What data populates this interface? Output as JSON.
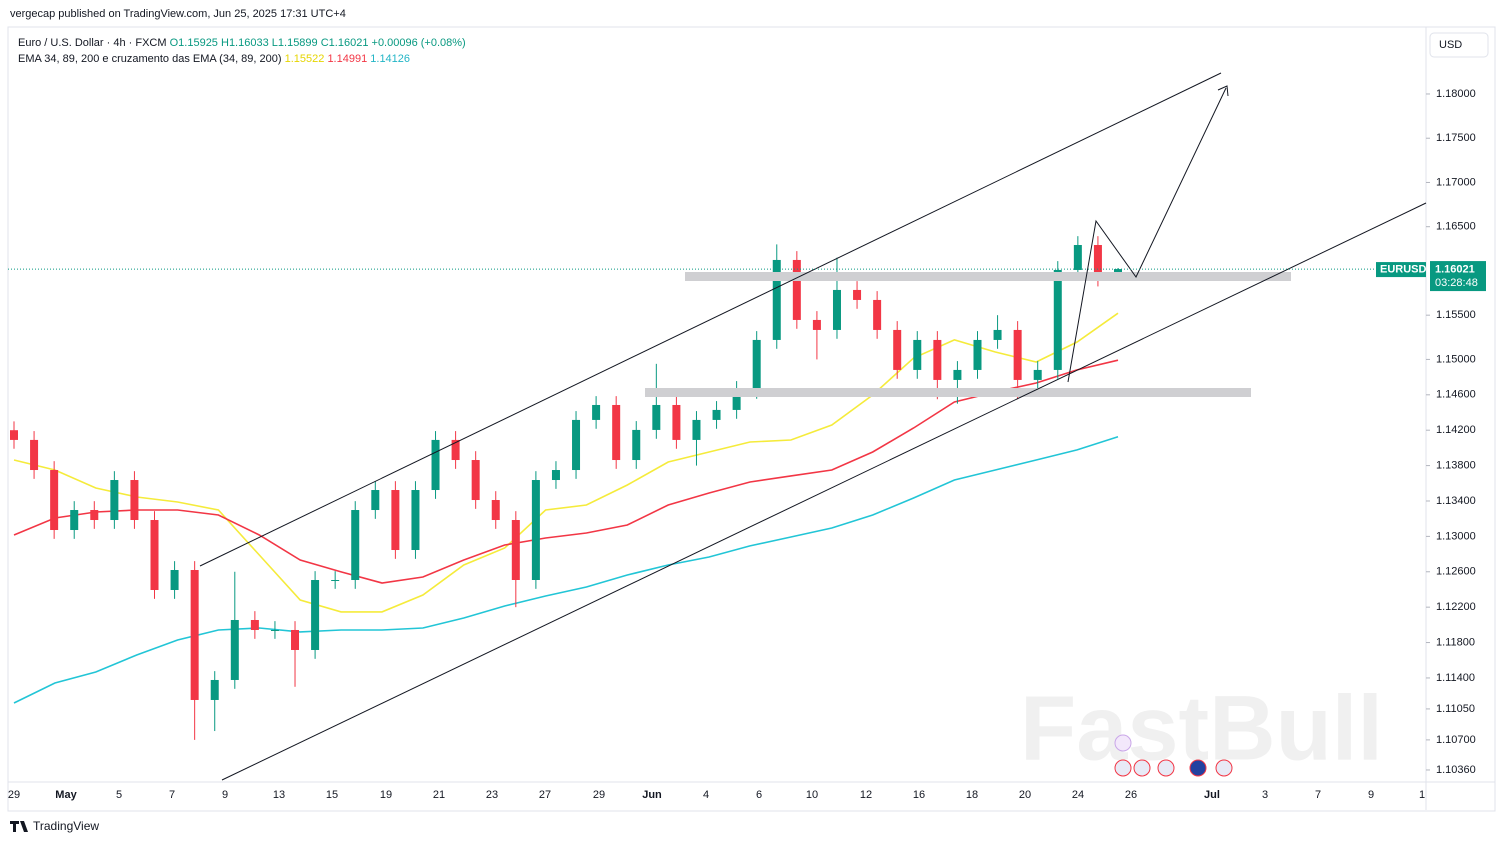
{
  "header": {
    "attribution": "vergecap published on TradingView.com, Jun 25, 2025 17:31 UTC+4"
  },
  "footer": {
    "brand": "TradingView"
  },
  "watermark": "FastBull",
  "chart_data": {
    "type": "candlestick",
    "title": "Euro / U.S. Dollar · 4h · FXCM",
    "ohlc_header": [
      "O1.15925",
      "H1.16033",
      "L1.15899",
      "C1.16021",
      "+0.00096 (+0.08%)"
    ],
    "indicator": "EMA 34, 89, 200 e cruzamento das EMA (34, 89, 200)",
    "currency": "USD",
    "up_color": "#089981",
    "down_color": "#f23645",
    "candles": {
      "open": [
        1.142,
        1.1409,
        1.1375,
        1.13072,
        1.13298,
        1.13185,
        1.13637,
        1.13185,
        1.12394,
        1.1262,
        1.11151,
        1.11377,
        1.12055,
        1.11942,
        1.11942,
        1.11716,
        1.12507,
        1.12507,
        1.13298,
        1.13524,
        1.12846,
        1.13524,
        1.1409,
        1.13863,
        1.13411,
        1.13185,
        1.12507,
        1.13637,
        1.1375,
        1.14316,
        1.14485,
        1.13863,
        1.14203,
        1.14485,
        1.1409,
        1.14316,
        1.14429,
        1.14655,
        1.1522,
        1.16124,
        1.15446,
        1.15333,
        1.15785,
        1.15672,
        1.15333,
        1.14881,
        1.1522,
        1.14768,
        1.14881,
        1.1522,
        1.15333,
        1.14768,
        1.14881,
        1.16011,
        1.16293,
        1.15925
      ],
      "high": [
        1.143,
        1.1419,
        1.1385,
        1.13398,
        1.13398,
        1.13737,
        1.13737,
        1.13285,
        1.1272,
        1.1272,
        1.11477,
        1.126,
        1.12155,
        1.12042,
        1.12042,
        1.12607,
        1.12607,
        1.13398,
        1.13624,
        1.13624,
        1.13624,
        1.1419,
        1.1419,
        1.13963,
        1.13511,
        1.13285,
        1.13737,
        1.1385,
        1.14416,
        1.14585,
        1.14585,
        1.14303,
        1.1495,
        1.14585,
        1.14416,
        1.14529,
        1.14755,
        1.1532,
        1.163,
        1.16224,
        1.15546,
        1.1615,
        1.15885,
        1.15772,
        1.15433,
        1.1532,
        1.1532,
        1.14981,
        1.1532,
        1.155,
        1.15433,
        1.14981,
        1.16111,
        1.16393,
        1.16393,
        1.16033
      ],
      "low": [
        1.1399,
        1.1365,
        1.12972,
        1.12972,
        1.13085,
        1.13085,
        1.13085,
        1.12294,
        1.12294,
        1.107,
        1.108,
        1.11277,
        1.11842,
        1.11842,
        1.113,
        1.11616,
        1.12407,
        1.12407,
        1.13198,
        1.12746,
        1.12746,
        1.13424,
        1.13763,
        1.13311,
        1.13085,
        1.122,
        1.12407,
        1.13537,
        1.1365,
        1.14216,
        1.13763,
        1.13763,
        1.14103,
        1.1399,
        1.138,
        1.14216,
        1.14329,
        1.14555,
        1.1512,
        1.15346,
        1.15,
        1.15233,
        1.15572,
        1.15233,
        1.14781,
        1.14781,
        1.1455,
        1.145,
        1.14781,
        1.1512,
        1.1455,
        1.146,
        1.14781,
        1.15911,
        1.15825,
        1.15899
      ],
      "close": [
        1.1409,
        1.1375,
        1.13072,
        1.13298,
        1.13185,
        1.13637,
        1.13185,
        1.12394,
        1.1262,
        1.11151,
        1.11377,
        1.12055,
        1.11942,
        1.11942,
        1.11716,
        1.12507,
        1.12507,
        1.13298,
        1.13524,
        1.12846,
        1.13524,
        1.1409,
        1.13863,
        1.13411,
        1.13185,
        1.12507,
        1.13637,
        1.1375,
        1.14316,
        1.14485,
        1.13863,
        1.14203,
        1.14485,
        1.1409,
        1.14316,
        1.14429,
        1.14655,
        1.1522,
        1.16124,
        1.15446,
        1.15333,
        1.15785,
        1.15672,
        1.15333,
        1.14881,
        1.1522,
        1.14768,
        1.14881,
        1.1522,
        1.15333,
        1.14768,
        1.14881,
        1.16011,
        1.16293,
        1.15925,
        1.16021
      ]
    },
    "series": [
      {
        "color": "#f5eb3b",
        "values": [
          1.13863,
          1.1375,
          1.13547,
          1.13445,
          1.13389,
          1.13298,
          1.1279,
          1.12281,
          1.12146,
          1.12146,
          1.12338,
          1.12677,
          1.12869,
          1.13298,
          1.13355,
          1.13581,
          1.13841,
          1.13954,
          1.14067,
          1.14089,
          1.14259,
          1.14598,
          1.15016,
          1.1522,
          1.15084,
          1.14971,
          1.15197,
          1.15522
        ]
      },
      {
        "color": "#f23645",
        "values": [
          1.13016,
          1.13208,
          1.13276,
          1.13298,
          1.13298,
          1.13242,
          1.13016,
          1.12733,
          1.12598,
          1.12473,
          1.12541,
          1.12733,
          1.12903,
          1.12982,
          1.13038,
          1.13129,
          1.13355,
          1.1349,
          1.13615,
          1.13683,
          1.1375,
          1.13954,
          1.14225,
          1.14519,
          1.14632,
          1.14734,
          1.14881,
          1.14991
        ]
      },
      {
        "color": "#22c5d6",
        "values": [
          1.11117,
          1.11343,
          1.11467,
          1.11659,
          1.11829,
          1.11942,
          1.11965,
          1.1192,
          1.11942,
          1.11942,
          1.11965,
          1.12078,
          1.12213,
          1.12326,
          1.12428,
          1.12564,
          1.12677,
          1.12767,
          1.12892,
          1.12993,
          1.13095,
          1.13242,
          1.13434,
          1.13637,
          1.1375,
          1.13863,
          1.13977,
          1.14126
        ]
      }
    ],
    "ylim": [
      1.10224,
      1.18723
    ],
    "yticks": [
      {
        "value": 1.18,
        "label": "1.18000"
      },
      {
        "value": 1.175,
        "label": "1.17500"
      },
      {
        "value": 1.17,
        "label": "1.17000"
      },
      {
        "value": 1.165,
        "label": "1.16500"
      },
      {
        "value": 1.155,
        "label": "1.15500"
      },
      {
        "value": 1.15,
        "label": "1.15000"
      },
      {
        "value": 1.146,
        "label": "1.14600"
      },
      {
        "value": 1.142,
        "label": "1.14200"
      },
      {
        "value": 1.138,
        "label": "1.13800"
      },
      {
        "value": 1.134,
        "label": "1.13400"
      },
      {
        "value": 1.13,
        "label": "1.13000"
      },
      {
        "value": 1.126,
        "label": "1.12600"
      },
      {
        "value": 1.122,
        "label": "1.12200"
      },
      {
        "value": 1.118,
        "label": "1.11800"
      },
      {
        "value": 1.114,
        "label": "1.11400"
      },
      {
        "value": 1.1105,
        "label": "1.11050"
      },
      {
        "value": 1.107,
        "label": "1.10700"
      },
      {
        "value": 1.1036,
        "label": "1.10360"
      }
    ],
    "x_labels": [
      "29",
      "May",
      "5",
      "7",
      "9",
      "13",
      "15",
      "19",
      "21",
      "23",
      "27",
      "29",
      "Jun",
      "4",
      "6",
      "10",
      "12",
      "16",
      "18",
      "20",
      "24",
      "26",
      "Jul",
      "3",
      "7",
      "9",
      "1"
    ],
    "price_label": {
      "symbol": "EURUSD",
      "countdown": "03:28:48"
    }
  }
}
